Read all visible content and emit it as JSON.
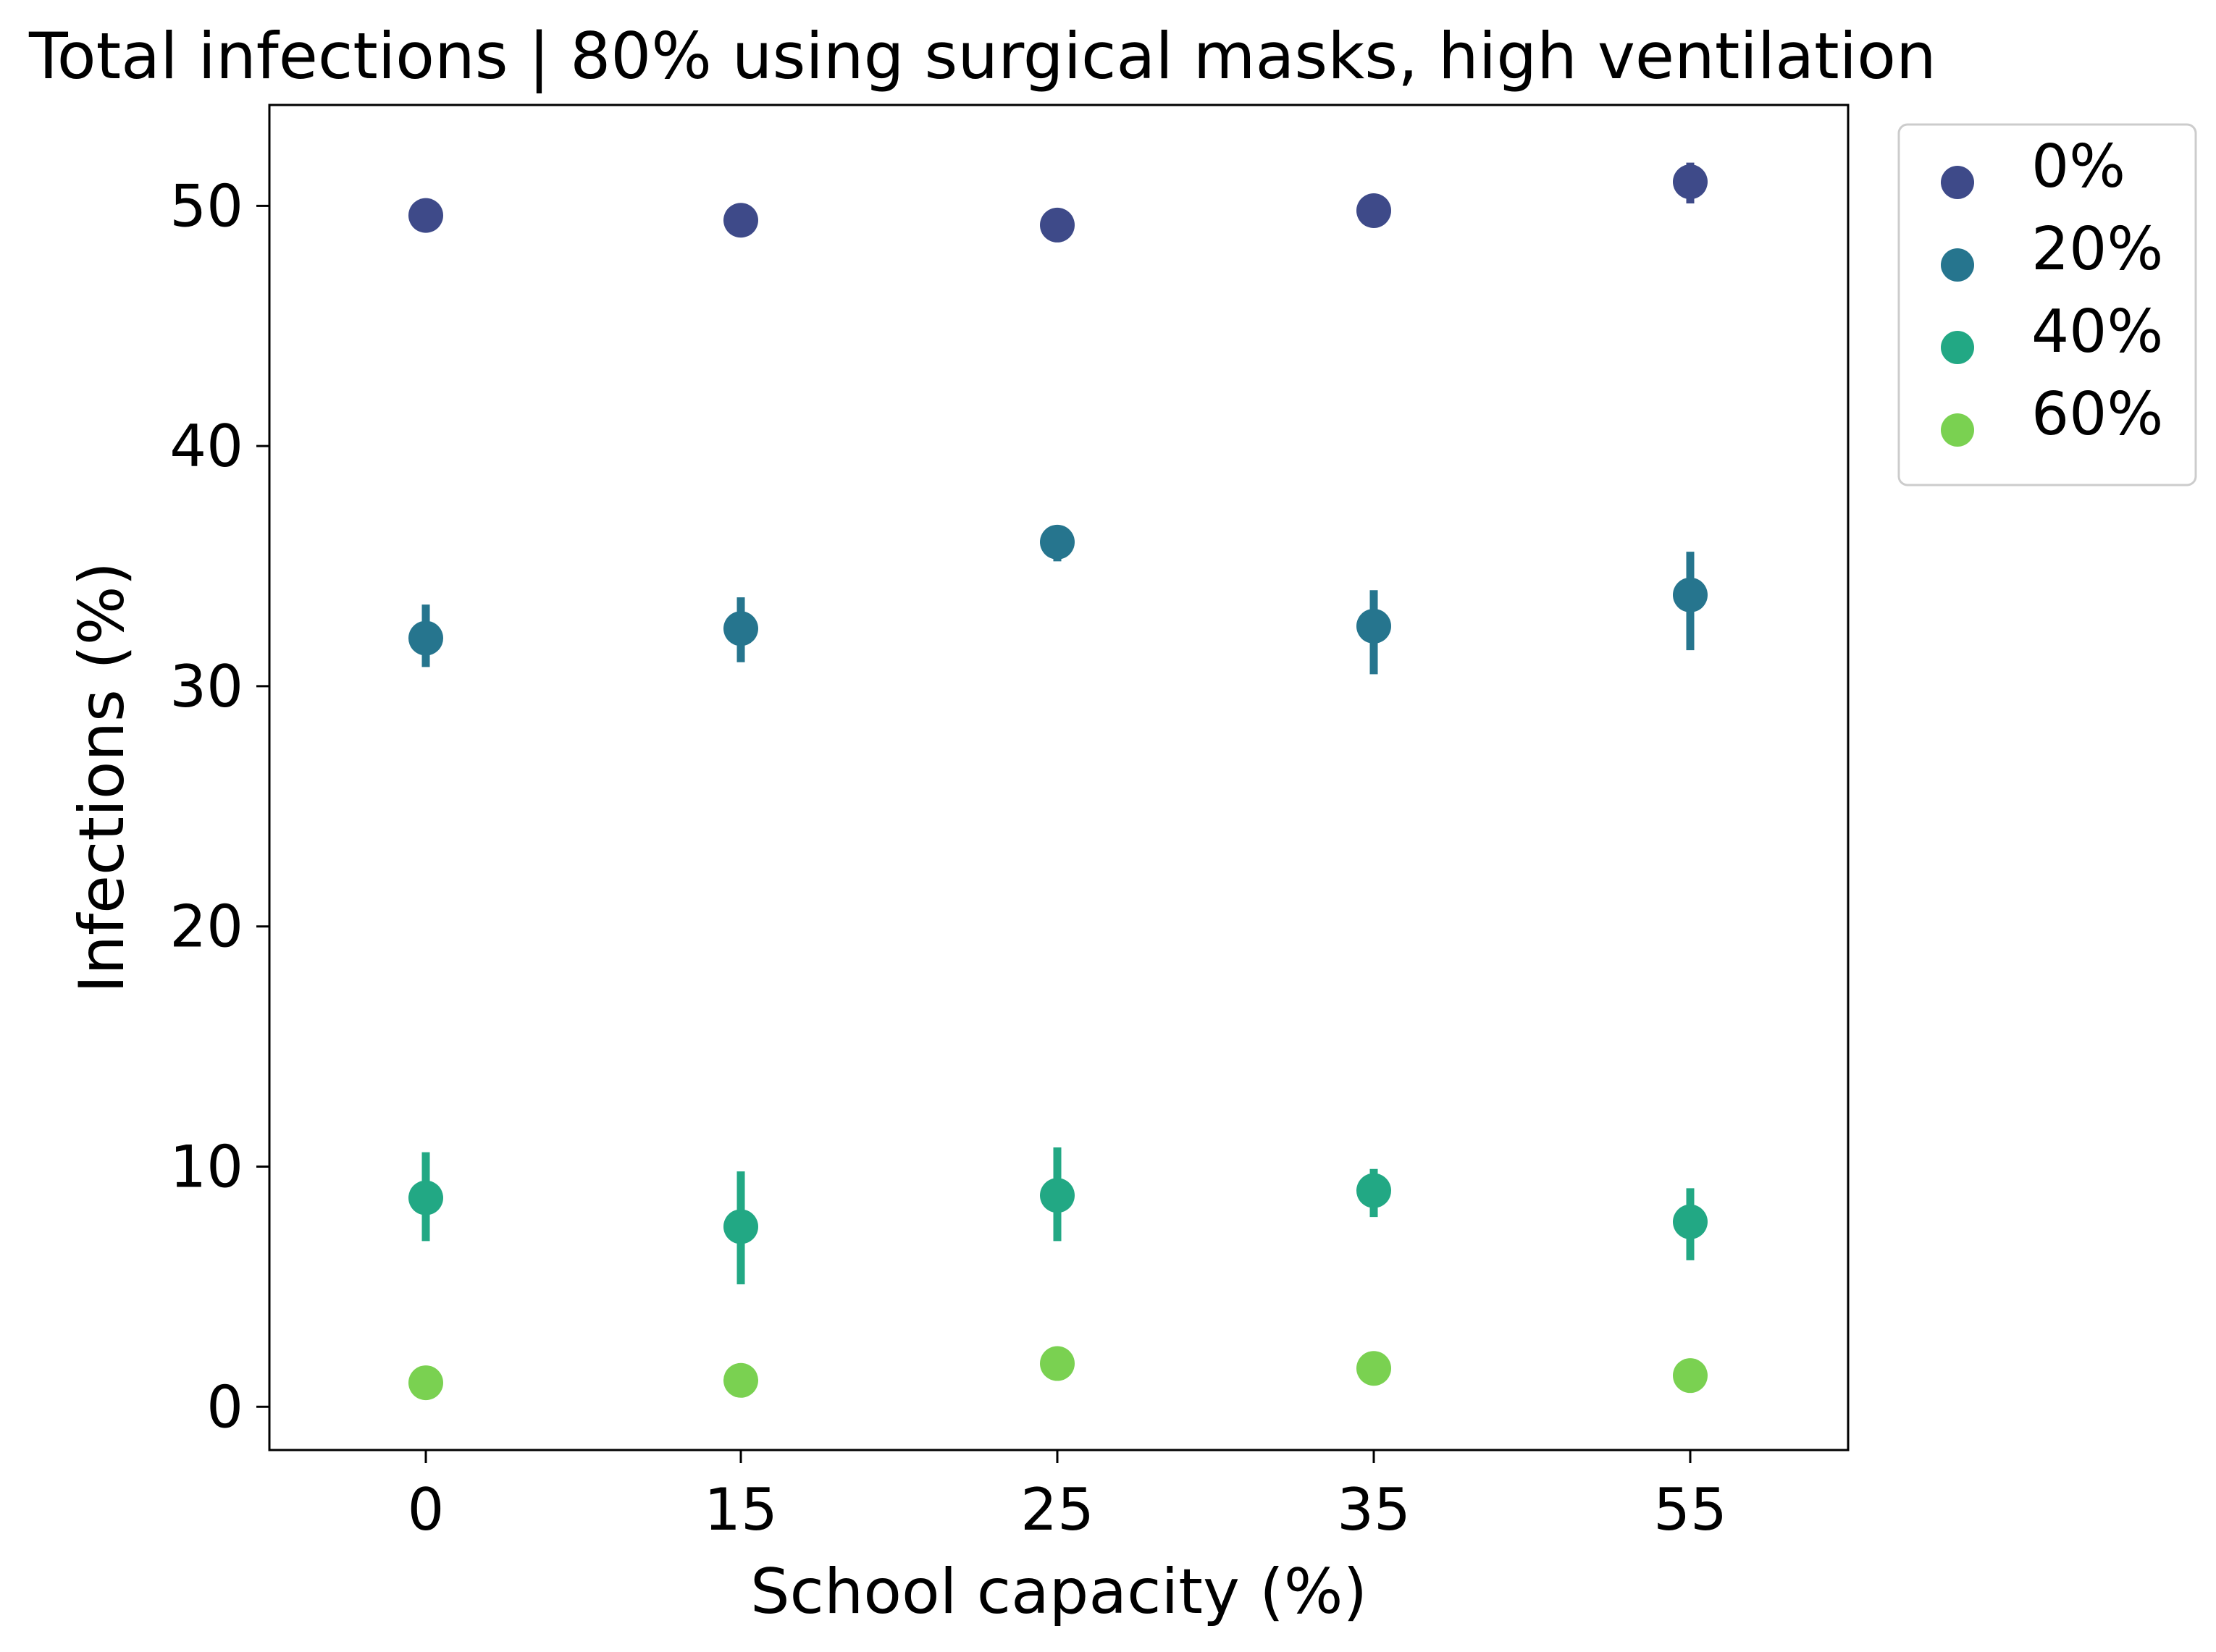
{
  "chart_data": {
    "type": "scatter",
    "title": "Total infections | 80% using surgical masks, high ventilation",
    "xlabel": "School capacity (%)",
    "ylabel": "Infections (%)",
    "categories": [
      "0",
      "15",
      "25",
      "35",
      "55"
    ],
    "ylim": [
      -1.8,
      54.2
    ],
    "yticks": [
      0,
      10,
      20,
      30,
      40,
      50
    ],
    "grid": false,
    "legend_position": "outside-top-right",
    "series": [
      {
        "name": "0%",
        "color": "#3e4a89",
        "values": [
          49.6,
          49.4,
          49.2,
          49.8,
          51.0
        ],
        "err_low": [
          49.3,
          48.9,
          48.7,
          49.5,
          50.1
        ],
        "err_high": [
          49.9,
          49.9,
          49.8,
          50.1,
          51.8
        ]
      },
      {
        "name": "20%",
        "color": "#26758e",
        "values": [
          32.0,
          32.4,
          36.0,
          32.5,
          33.8
        ],
        "err_low": [
          30.8,
          31.0,
          35.2,
          30.5,
          31.5
        ],
        "err_high": [
          33.4,
          33.7,
          36.6,
          34.0,
          35.6
        ]
      },
      {
        "name": "40%",
        "color": "#22a884",
        "values": [
          8.7,
          7.5,
          8.8,
          9.0,
          7.7
        ],
        "err_low": [
          6.9,
          5.1,
          6.9,
          7.9,
          6.1
        ],
        "err_high": [
          10.6,
          9.8,
          10.8,
          9.9,
          9.1
        ]
      },
      {
        "name": "60%",
        "color": "#7ad151",
        "values": [
          1.0,
          1.1,
          1.8,
          1.6,
          1.3
        ],
        "err_low": [
          0.8,
          0.9,
          1.6,
          1.4,
          1.1
        ],
        "err_high": [
          1.2,
          1.3,
          2.0,
          1.8,
          1.5
        ]
      }
    ]
  }
}
